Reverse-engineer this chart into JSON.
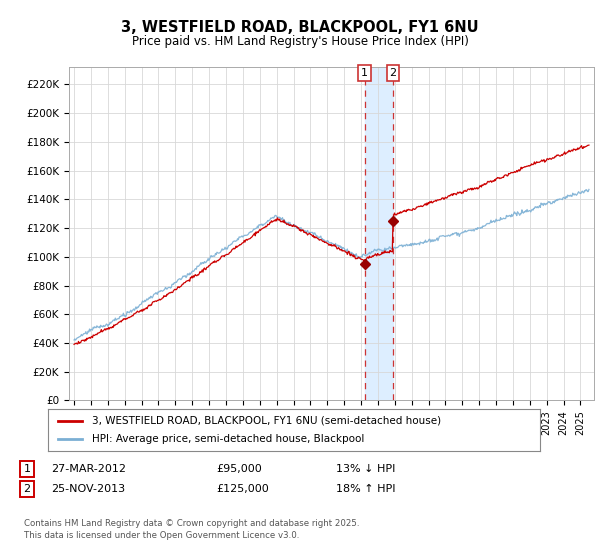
{
  "title1": "3, WESTFIELD ROAD, BLACKPOOL, FY1 6NU",
  "title2": "Price paid vs. HM Land Registry's House Price Index (HPI)",
  "ylabel_ticks": [
    "£0",
    "£20K",
    "£40K",
    "£60K",
    "£80K",
    "£100K",
    "£120K",
    "£140K",
    "£160K",
    "£180K",
    "£200K",
    "£220K"
  ],
  "ytick_vals": [
    0,
    20000,
    40000,
    60000,
    80000,
    100000,
    120000,
    140000,
    160000,
    180000,
    200000,
    220000
  ],
  "ylim_max": 230000,
  "sale1_year": 2012.21,
  "sale1_price": 95000,
  "sale1_label": "27-MAR-2012",
  "sale1_hpi_text": "13% ↓ HPI",
  "sale2_year": 2013.9,
  "sale2_price": 125000,
  "sale2_label": "25-NOV-2013",
  "sale2_hpi_text": "18% ↑ HPI",
  "legend_label1": "3, WESTFIELD ROAD, BLACKPOOL, FY1 6NU (semi-detached house)",
  "legend_label2": "HPI: Average price, semi-detached house, Blackpool",
  "line1_color": "#cc0000",
  "line2_color": "#7bafd4",
  "marker_color": "#990000",
  "shade_color": "#ddeeff",
  "grid_color": "#d8d8d8",
  "footnote": "Contains HM Land Registry data © Crown copyright and database right 2025.\nThis data is licensed under the Open Government Licence v3.0.",
  "background_color": "#ffffff"
}
